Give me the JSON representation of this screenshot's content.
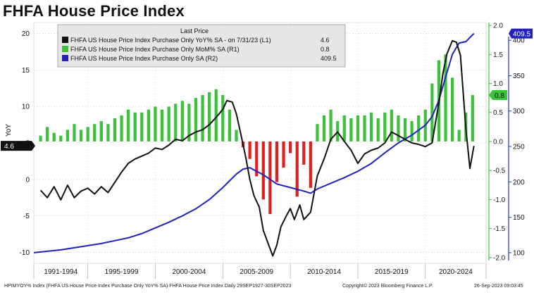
{
  "title": "FHFA House Price Index",
  "footer": {
    "source": "HPIMYOY% Index (FHFA US House Price Index Purchase Only YoY% SA) FHFA House Price Index  Daily 29SEP1927-30SEP2023",
    "copyright": "Copyright© 2023 Bloomberg Finance L.P.",
    "timestamp": "26-Sep-2023 09:03:45"
  },
  "colors": {
    "yoy": "#111111",
    "mom_pos": "#3cc13c",
    "mom_neg": "#e02020",
    "index": "#2222bb"
  },
  "chart_data": {
    "type": "line",
    "title": "FHFA House Price Index",
    "xlabel": "",
    "ylabel": "YoY",
    "x_tick_labels": [
      "1991-1994",
      "1995-1999",
      "2000-2004",
      "2005-2009",
      "2010-2014",
      "2015-2019",
      "2020-2024"
    ],
    "x_range": [
      1991,
      2024.5
    ],
    "axes": {
      "L1": {
        "range": [
          -11.5,
          21.5
        ],
        "ticks": [
          -10,
          -5,
          0,
          5,
          10,
          15,
          20
        ]
      },
      "R1": {
        "range": [
          -2.1,
          2.05
        ],
        "ticks": [
          2.0,
          1.5,
          1.0,
          0.5,
          0.0,
          -0.5,
          -1.0,
          -1.5,
          -2.0
        ],
        "tick_labels": [
          "2.0",
          "1.5",
          "1.0",
          "0.5",
          "0.0",
          "-0.5",
          "-1.0",
          "-1.5",
          "-2.0"
        ]
      },
      "R2": {
        "range": [
          85,
          425
        ],
        "ticks": [
          400,
          350,
          300,
          250,
          200,
          150,
          100
        ]
      }
    },
    "legend": {
      "header": "Last Price",
      "placement": "top-left",
      "entries": [
        {
          "label": "FHFA US House Price Index Purchase Only YoY% SA  -  on 7/31/23  (L1)",
          "value": "4.6"
        },
        {
          "label": "FHFA US House Price Index Purchase Only MoM% SA  (R1)",
          "value": "0.8"
        },
        {
          "label": "FHFA US House Price Index Purchase Only SA  (R2)",
          "value": "409.5"
        }
      ]
    },
    "last_value_tags": {
      "yoy": "4.6",
      "mom": "0.8",
      "index": "409.5"
    },
    "series": [
      {
        "name": "FHFA US House Price Index Purchase Only YoY% SA",
        "axis": "L1",
        "x": [
          1991.5,
          1992,
          1992.5,
          1993,
          1993.5,
          1994,
          1994.5,
          1995,
          1995.5,
          1996,
          1996.5,
          1997,
          1997.5,
          1998,
          1998.5,
          1999,
          1999.5,
          2000,
          2000.5,
          2001,
          2001.5,
          2002,
          2002.5,
          2003,
          2003.5,
          2004,
          2004.5,
          2005,
          2005.3,
          2005.7,
          2006,
          2006.3,
          2006.7,
          2007,
          2007.3,
          2007.7,
          2008,
          2008.3,
          2008.7,
          2009,
          2009.3,
          2009.7,
          2010,
          2010.3,
          2010.7,
          2011,
          2011.5,
          2012,
          2012.5,
          2013,
          2013.5,
          2014,
          2014.5,
          2015,
          2015.5,
          2016,
          2016.5,
          2017,
          2017.5,
          2018,
          2018.5,
          2019,
          2019.5,
          2020,
          2020.5,
          2021,
          2021.3,
          2021.6,
          2022,
          2022.3,
          2022.6,
          2023,
          2023.3,
          2023.6
        ],
        "values": [
          -1.5,
          -2.5,
          -1.0,
          -2.8,
          -0.8,
          -2.5,
          -1.6,
          -1.2,
          -2.0,
          -1.0,
          -1.8,
          -0.4,
          1.0,
          2.2,
          2.8,
          3.2,
          3.6,
          4.3,
          4.1,
          4.7,
          5.5,
          5.3,
          6.0,
          6.5,
          6.8,
          7.5,
          8.5,
          9.6,
          10.8,
          10.6,
          9.0,
          6.5,
          3.0,
          0.0,
          -2.2,
          -3.8,
          -7.0,
          -8.5,
          -10.5,
          -9.0,
          -6.5,
          -5.0,
          -4.0,
          -5.5,
          -3.5,
          -5.5,
          -4.5,
          0.5,
          2.8,
          5.5,
          6.5,
          5.2,
          4.0,
          2.2,
          3.5,
          4.0,
          4.3,
          5.0,
          6.5,
          6.0,
          5.5,
          5.0,
          4.8,
          4.5,
          5.0,
          10.5,
          14.5,
          17.2,
          19.0,
          18.8,
          17.0,
          7.0,
          1.5,
          4.6
        ]
      },
      {
        "name": "FHFA US House Price Index Purchase Only MoM% SA",
        "axis": "R1",
        "display": "bars",
        "x": [
          1991.5,
          1992,
          1992.5,
          1993,
          1993.5,
          1994,
          1994.5,
          1995,
          1995.5,
          1996,
          1996.5,
          1997,
          1997.5,
          1998,
          1998.5,
          1999,
          1999.5,
          2000,
          2000.5,
          2001,
          2001.5,
          2002,
          2002.5,
          2003,
          2003.5,
          2004,
          2004.5,
          2005,
          2005.5,
          2006,
          2006.5,
          2007,
          2007.5,
          2008,
          2008.5,
          2009,
          2009.5,
          2010,
          2010.5,
          2011,
          2011.5,
          2012,
          2012.5,
          2013,
          2013.5,
          2014,
          2014.5,
          2015,
          2015.5,
          2016,
          2016.5,
          2017,
          2017.5,
          2018,
          2018.5,
          2019,
          2019.5,
          2020,
          2020.5,
          2021,
          2021.5,
          2022,
          2022.5,
          2023,
          2023.5
        ],
        "values": [
          0.1,
          0.25,
          0.15,
          0.1,
          0.2,
          0.3,
          0.2,
          0.25,
          0.3,
          0.35,
          0.3,
          0.4,
          0.45,
          0.55,
          0.5,
          0.5,
          0.55,
          0.6,
          0.55,
          0.6,
          0.65,
          0.7,
          0.65,
          0.75,
          0.8,
          0.85,
          0.9,
          0.8,
          0.55,
          0.2,
          -0.1,
          -0.3,
          -0.6,
          -1.0,
          -1.25,
          -0.7,
          -0.45,
          -0.2,
          -0.95,
          -0.4,
          -0.8,
          0.3,
          0.45,
          0.55,
          0.35,
          0.45,
          0.4,
          0.45,
          0.45,
          0.5,
          0.4,
          0.5,
          0.55,
          0.45,
          0.4,
          0.35,
          0.45,
          0.55,
          1.0,
          1.4,
          1.5,
          1.1,
          0.2,
          0.5,
          0.8
        ]
      },
      {
        "name": "FHFA US House Price Index Purchase Only SA",
        "axis": "R2",
        "x": [
          1991,
          1992,
          1993,
          1994,
          1995,
          1996,
          1997,
          1998,
          1999,
          2000,
          2001,
          2002,
          2003,
          2004,
          2005,
          2006,
          2006.5,
          2007,
          2008,
          2009,
          2010,
          2011,
          2011.5,
          2012,
          2013,
          2014,
          2015,
          2016,
          2017,
          2018,
          2019,
          2020,
          2020.5,
          2021,
          2021.5,
          2022,
          2022.5,
          2023,
          2023.6
        ],
        "values": [
          100,
          102,
          104,
          107,
          110,
          113,
          117,
          121,
          127,
          135,
          143,
          152,
          162,
          175,
          192,
          211,
          218,
          220,
          210,
          197,
          192,
          187,
          184,
          190,
          198,
          206,
          215,
          226,
          241,
          255,
          266,
          280,
          292,
          315,
          348,
          380,
          396,
          398,
          409.5
        ]
      }
    ]
  }
}
